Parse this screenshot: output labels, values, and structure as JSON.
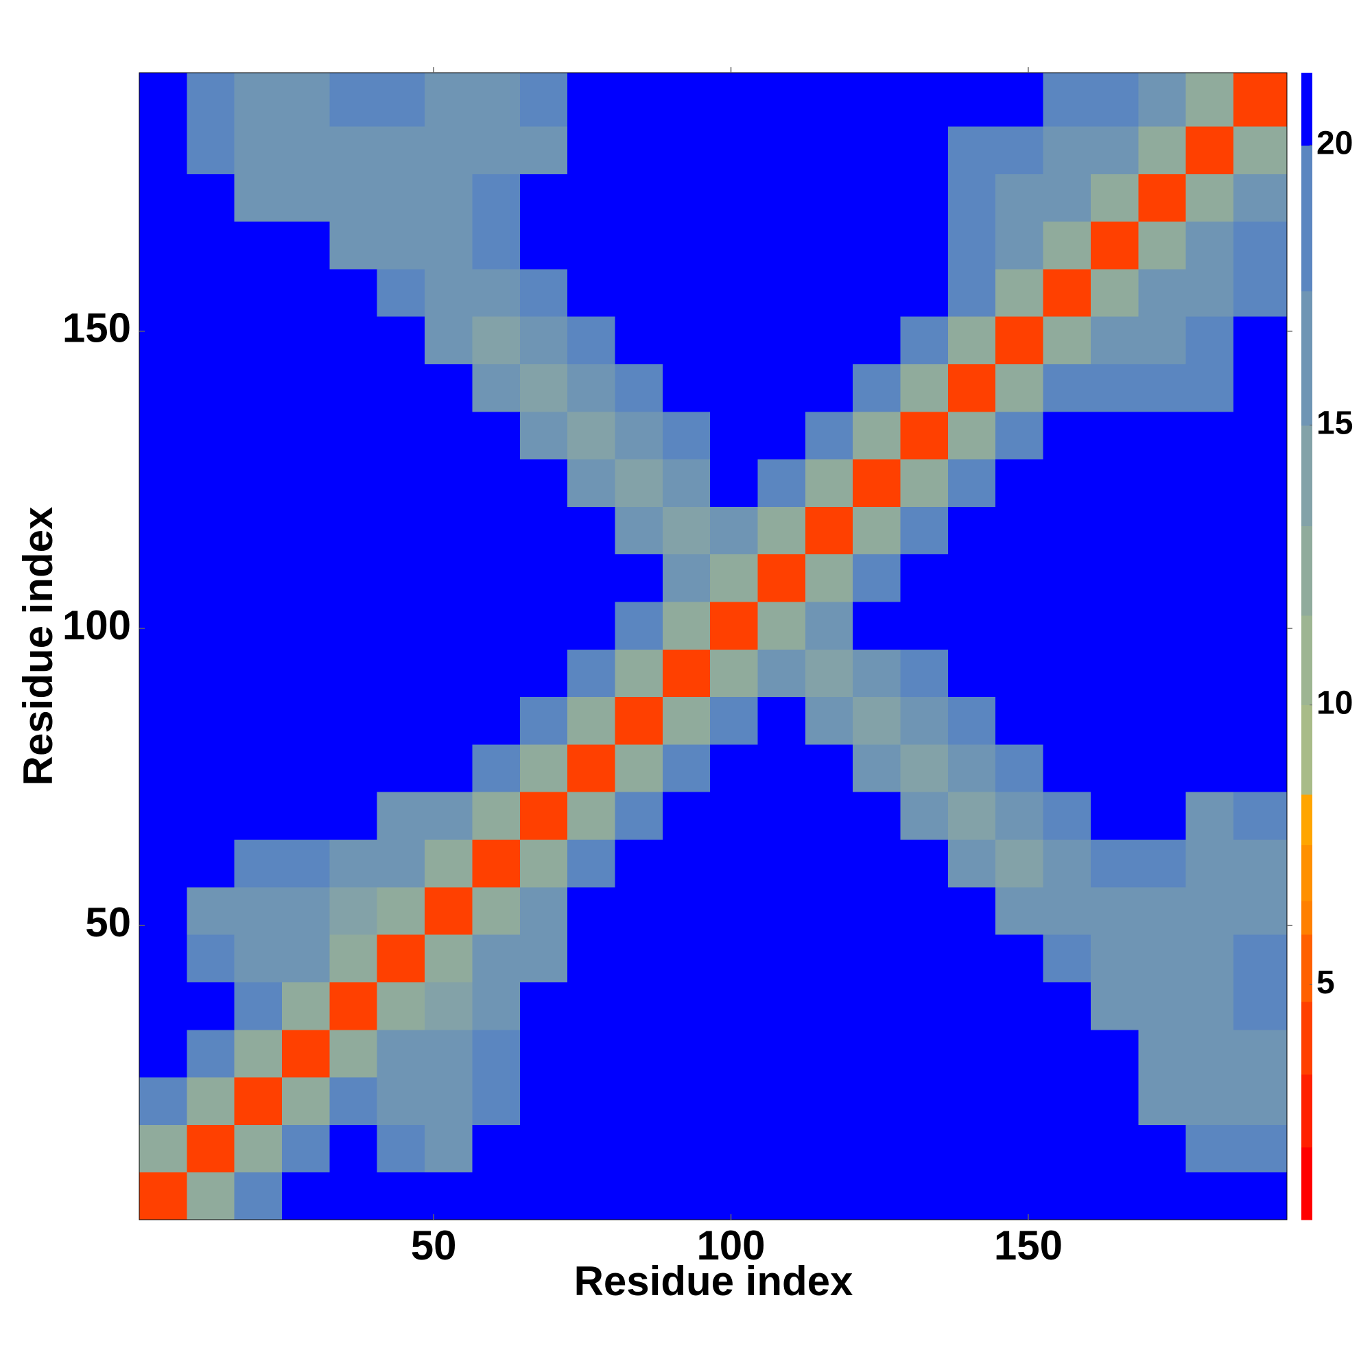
{
  "chart_data": {
    "type": "heatmap",
    "x_label": "Residue index",
    "y_label": "Residue index",
    "xbins": [
      0.5,
      8.5,
      16.5,
      24.5,
      32.5,
      40.5,
      48.5,
      56.5,
      64.5,
      72.5,
      80.5,
      88.5,
      96.5,
      104.5,
      112.5,
      120.5,
      128.5,
      136.5,
      144.5,
      152.5,
      160.5,
      168.5,
      176.5,
      184.5,
      193.5
    ],
    "ybins": [
      0.5,
      8.5,
      16.5,
      24.5,
      32.5,
      40.5,
      48.5,
      56.5,
      64.5,
      72.5,
      80.5,
      88.5,
      96.5,
      104.5,
      112.5,
      120.5,
      128.5,
      136.5,
      144.5,
      152.5,
      160.5,
      168.5,
      176.5,
      184.5,
      193.5
    ],
    "z": [
      [
        4,
        12,
        19,
        22,
        22,
        22,
        22,
        22,
        22,
        22,
        22,
        22,
        22,
        22,
        22,
        22,
        22,
        22,
        22,
        22,
        22,
        22,
        22,
        22
      ],
      [
        12,
        4,
        12,
        19,
        20,
        18,
        17,
        20,
        22,
        22,
        22,
        22,
        22,
        22,
        22,
        22,
        22,
        22,
        22,
        22,
        22,
        20,
        18,
        19
      ],
      [
        19,
        12,
        4,
        12,
        18,
        16,
        15,
        19,
        22,
        22,
        22,
        22,
        22,
        22,
        22,
        22,
        22,
        22,
        22,
        22,
        22,
        17,
        15,
        17
      ],
      [
        22,
        19,
        12,
        4,
        12,
        15,
        16,
        19,
        22,
        22,
        22,
        22,
        22,
        22,
        22,
        22,
        22,
        22,
        22,
        22,
        22,
        16,
        15,
        17
      ],
      [
        22,
        20,
        18,
        12,
        4,
        12,
        14,
        16,
        22,
        22,
        22,
        22,
        22,
        22,
        22,
        22,
        22,
        22,
        22,
        22,
        17,
        17,
        17,
        19
      ],
      [
        22,
        18,
        16,
        15,
        12,
        4,
        12,
        15,
        17,
        22,
        22,
        22,
        22,
        22,
        22,
        22,
        22,
        22,
        22,
        18,
        15,
        17,
        16,
        18
      ],
      [
        22,
        17,
        15,
        16,
        14,
        12,
        4,
        12,
        15,
        22,
        22,
        22,
        22,
        22,
        22,
        22,
        22,
        22,
        17,
        15,
        16,
        17,
        15,
        17
      ],
      [
        22,
        20,
        19,
        19,
        16,
        15,
        12,
        4,
        12,
        19,
        22,
        22,
        22,
        22,
        22,
        22,
        22,
        17,
        14,
        16,
        18,
        18,
        15,
        17
      ],
      [
        22,
        22,
        22,
        22,
        22,
        17,
        15,
        12,
        4,
        12,
        19,
        22,
        22,
        22,
        22,
        22,
        17,
        14,
        16,
        18,
        22,
        20,
        16,
        19
      ],
      [
        22,
        22,
        22,
        22,
        22,
        22,
        22,
        19,
        12,
        4,
        12,
        19,
        22,
        22,
        22,
        17,
        14,
        16,
        18,
        22,
        22,
        22,
        20,
        22
      ],
      [
        22,
        22,
        22,
        22,
        22,
        22,
        22,
        22,
        19,
        12,
        4,
        12,
        19,
        22,
        17,
        14,
        16,
        19,
        22,
        22,
        22,
        22,
        22,
        22
      ],
      [
        22,
        22,
        22,
        22,
        22,
        22,
        22,
        22,
        22,
        19,
        12,
        4,
        12,
        16,
        14,
        17,
        19,
        22,
        22,
        22,
        22,
        22,
        22,
        22
      ],
      [
        22,
        22,
        22,
        22,
        22,
        22,
        22,
        22,
        22,
        22,
        19,
        12,
        4,
        12,
        17,
        22,
        22,
        22,
        22,
        22,
        22,
        22,
        22,
        22
      ],
      [
        22,
        22,
        22,
        22,
        22,
        22,
        22,
        22,
        22,
        22,
        22,
        16,
        12,
        4,
        12,
        19,
        22,
        22,
        22,
        22,
        22,
        22,
        22,
        22
      ],
      [
        22,
        22,
        22,
        22,
        22,
        22,
        22,
        22,
        22,
        22,
        17,
        14,
        17,
        12,
        4,
        12,
        19,
        22,
        22,
        22,
        22,
        22,
        22,
        22
      ],
      [
        22,
        22,
        22,
        22,
        22,
        22,
        22,
        22,
        22,
        17,
        14,
        17,
        22,
        19,
        12,
        4,
        12,
        19,
        22,
        22,
        22,
        22,
        22,
        22
      ],
      [
        22,
        22,
        22,
        22,
        22,
        22,
        22,
        22,
        17,
        14,
        16,
        19,
        22,
        22,
        19,
        12,
        4,
        12,
        19,
        22,
        22,
        22,
        22,
        22
      ],
      [
        22,
        22,
        22,
        22,
        22,
        22,
        22,
        17,
        14,
        16,
        19,
        22,
        22,
        22,
        22,
        19,
        12,
        4,
        12,
        19,
        18,
        19,
        19,
        22
      ],
      [
        22,
        22,
        22,
        22,
        22,
        22,
        17,
        14,
        16,
        18,
        22,
        22,
        22,
        22,
        22,
        22,
        19,
        12,
        4,
        12,
        16,
        17,
        18,
        20
      ],
      [
        22,
        22,
        22,
        22,
        22,
        18,
        15,
        16,
        18,
        22,
        22,
        22,
        22,
        22,
        22,
        22,
        22,
        19,
        12,
        4,
        12,
        16,
        16,
        19
      ],
      [
        22,
        22,
        22,
        22,
        17,
        15,
        16,
        18,
        22,
        22,
        22,
        22,
        22,
        22,
        22,
        22,
        22,
        18,
        16,
        12,
        4,
        12,
        16,
        18
      ],
      [
        22,
        20,
        17,
        16,
        17,
        17,
        17,
        18,
        20,
        22,
        22,
        22,
        22,
        22,
        22,
        22,
        22,
        19,
        17,
        16,
        12,
        4,
        12,
        16
      ],
      [
        22,
        18,
        15,
        15,
        17,
        16,
        15,
        15,
        16,
        20,
        22,
        22,
        22,
        22,
        22,
        22,
        22,
        19,
        18,
        16,
        16,
        12,
        4,
        12
      ],
      [
        22,
        19,
        17,
        17,
        19,
        18,
        17,
        17,
        19,
        22,
        22,
        22,
        22,
        22,
        22,
        22,
        22,
        22,
        20,
        19,
        18,
        16,
        12,
        4
      ]
    ],
    "xlim": [
      0.5,
      193.5
    ],
    "ylim": [
      0.5,
      193.5
    ],
    "xticks": [
      50,
      100,
      150
    ],
    "yticks": [
      50,
      100,
      150
    ],
    "colorbar": {
      "levels": [
        0.8,
        2.1,
        3.4,
        4.7,
        5.9,
        6.5,
        7.5,
        8.4,
        10,
        11.6,
        13.2,
        15,
        17.4,
        20,
        21.3
      ],
      "colors": [
        "#ff0000",
        "#ff2000",
        "#ff4000",
        "#ff6000",
        "#ff8000",
        "#ff9000",
        "#ffa500",
        "#a8bb88",
        "#9db592",
        "#90ab9c",
        "#83a2a8",
        "#6f95b4",
        "#5b86c0",
        "#0000ff"
      ],
      "ticks": [
        5,
        10,
        15,
        20
      ]
    }
  }
}
